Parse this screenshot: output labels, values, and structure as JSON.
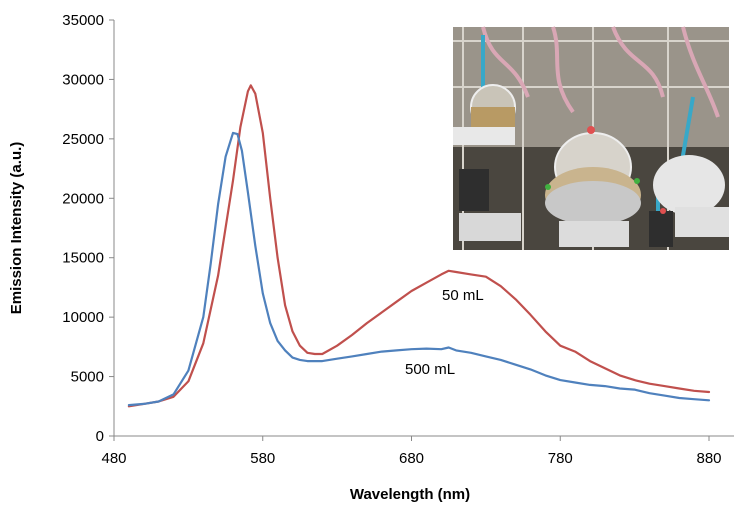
{
  "chart_data": {
    "type": "line",
    "title": "",
    "xlabel": "Wavelength (nm)",
    "ylabel": "Emission Intensity (a.u.)",
    "xlim": [
      480,
      880
    ],
    "ylim": [
      0,
      35000
    ],
    "x_ticks": [
      480,
      580,
      680,
      780,
      880
    ],
    "y_ticks": [
      0,
      5000,
      10000,
      15000,
      20000,
      25000,
      30000,
      35000
    ],
    "grid": false,
    "legend": "none",
    "annotations": [
      {
        "text": "50 mL",
        "series": "50 mL"
      },
      {
        "text": "500 mL",
        "series": "500 mL"
      }
    ],
    "inset": {
      "description": "photograph of laboratory glassware setup",
      "position": "top-right"
    },
    "series": [
      {
        "name": "50 mL",
        "color": "#c0504d",
        "x": [
          490,
          500,
          510,
          520,
          530,
          540,
          550,
          560,
          565,
          570,
          572,
          575,
          580,
          585,
          590,
          595,
          600,
          605,
          610,
          615,
          620,
          630,
          640,
          650,
          660,
          670,
          680,
          690,
          700,
          705,
          710,
          720,
          730,
          740,
          750,
          760,
          770,
          780,
          790,
          800,
          810,
          820,
          830,
          840,
          850,
          860,
          870,
          880
        ],
        "y": [
          2500,
          2700,
          2900,
          3300,
          4600,
          7800,
          13500,
          21500,
          26000,
          29000,
          29500,
          28800,
          25500,
          20000,
          15000,
          11000,
          8800,
          7600,
          7000,
          6900,
          6900,
          7600,
          8500,
          9500,
          10400,
          11300,
          12200,
          12900,
          13600,
          13900,
          13800,
          13600,
          13400,
          12600,
          11500,
          10200,
          8800,
          7600,
          7100,
          6300,
          5700,
          5100,
          4700,
          4400,
          4200,
          4000,
          3800,
          3700
        ]
      },
      {
        "name": "500 mL",
        "color": "#4f81bd",
        "x": [
          490,
          500,
          510,
          520,
          530,
          540,
          545,
          550,
          555,
          560,
          563,
          566,
          570,
          575,
          580,
          585,
          590,
          595,
          600,
          605,
          610,
          620,
          630,
          640,
          650,
          660,
          670,
          680,
          690,
          700,
          705,
          710,
          720,
          730,
          740,
          750,
          760,
          770,
          780,
          790,
          800,
          810,
          820,
          830,
          840,
          850,
          860,
          870,
          880
        ],
        "y": [
          2600,
          2700,
          2900,
          3500,
          5500,
          10000,
          14500,
          19500,
          23500,
          25500,
          25400,
          24000,
          20500,
          16000,
          12000,
          9500,
          8000,
          7200,
          6600,
          6400,
          6300,
          6300,
          6500,
          6700,
          6900,
          7100,
          7200,
          7300,
          7350,
          7300,
          7450,
          7200,
          7000,
          6700,
          6400,
          6000,
          5600,
          5100,
          4700,
          4500,
          4300,
          4200,
          4000,
          3900,
          3600,
          3400,
          3200,
          3100,
          3000
        ]
      }
    ]
  }
}
